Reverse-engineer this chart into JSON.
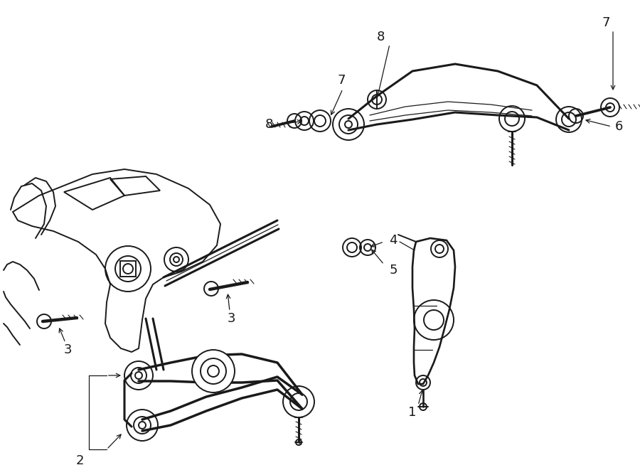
{
  "bg_color": "#ffffff",
  "line_color": "#1a1a1a",
  "figsize": [
    9.0,
    6.61
  ],
  "dpi": 100,
  "lw_main": 1.4,
  "lw_thick": 2.2,
  "lw_thin": 0.9,
  "fs_label": 13
}
